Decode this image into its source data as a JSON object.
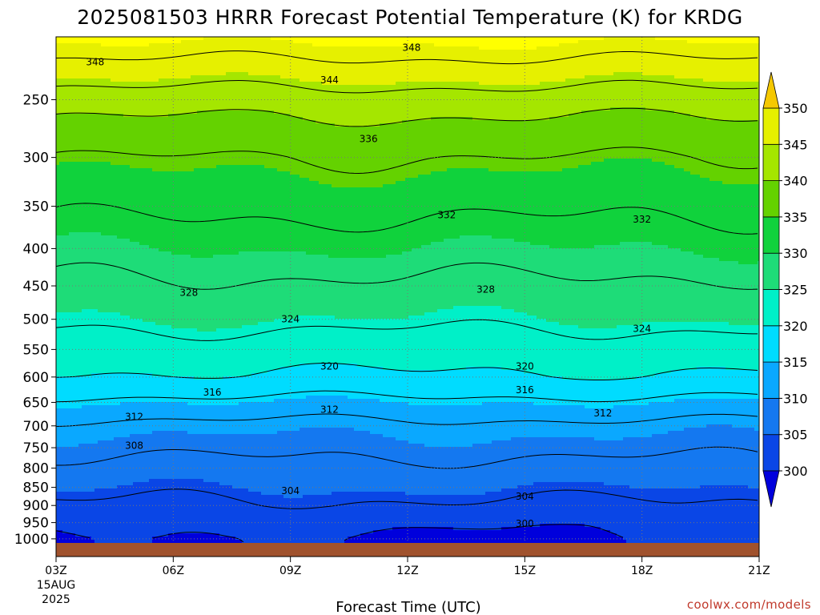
{
  "chart_data": {
    "type": "heatmap",
    "title": "2025081503 HRRR Forecast Potential Temperature (K) for KRDG",
    "xlabel": "Forecast Time (UTC)",
    "ylabel": "",
    "x_ticks": [
      "03Z",
      "06Z",
      "09Z",
      "12Z",
      "15Z",
      "18Z",
      "21Z"
    ],
    "x_hours": [
      3,
      6,
      9,
      12,
      15,
      18,
      21
    ],
    "x_date_lines": [
      "15AUG",
      "2025"
    ],
    "xlim": [
      3,
      21
    ],
    "y_ticks": [
      250,
      300,
      350,
      400,
      450,
      500,
      550,
      600,
      650,
      700,
      750,
      800,
      850,
      900,
      950,
      1000
    ],
    "y_tick_labels": [
      "250",
      "300",
      "350",
      "400",
      "450",
      "500",
      "550",
      "600",
      "650",
      "700",
      "750",
      "800",
      "850",
      "900",
      "950",
      "1000"
    ],
    "ylim": [
      1013,
      205
    ],
    "y_scale": "log-pressure",
    "ground_color": "#a0522d",
    "colorbar": {
      "levels": [
        300,
        305,
        310,
        315,
        320,
        325,
        330,
        335,
        340,
        345,
        350
      ],
      "labels": [
        "300",
        "305",
        "310",
        "315",
        "320",
        "325",
        "330",
        "335",
        "340",
        "345",
        "350"
      ],
      "colors": [
        "#0000dc",
        "#0a46e6",
        "#1478f0",
        "#0aa8ff",
        "#00dcff",
        "#00f0c8",
        "#1edc78",
        "#10d23c",
        "#64d200",
        "#a5e600",
        "#e6f000",
        "#ffff00"
      ],
      "extend": "both"
    },
    "contour_interval": 4,
    "contour_labels": [
      {
        "value": "348",
        "hour": 12.1,
        "p": 212
      },
      {
        "value": "348",
        "hour": 4.0,
        "p": 222
      },
      {
        "value": "344",
        "hour": 10.0,
        "p": 235
      },
      {
        "value": "336",
        "hour": 11.0,
        "p": 283
      },
      {
        "value": "332",
        "hour": 13.0,
        "p": 360
      },
      {
        "value": "332",
        "hour": 18.0,
        "p": 365
      },
      {
        "value": "328",
        "hour": 6.4,
        "p": 460
      },
      {
        "value": "328",
        "hour": 14.0,
        "p": 455
      },
      {
        "value": "324",
        "hour": 9.0,
        "p": 500
      },
      {
        "value": "324",
        "hour": 18.0,
        "p": 515
      },
      {
        "value": "320",
        "hour": 10.0,
        "p": 580
      },
      {
        "value": "320",
        "hour": 15.0,
        "p": 580
      },
      {
        "value": "316",
        "hour": 7.0,
        "p": 630
      },
      {
        "value": "316",
        "hour": 15.0,
        "p": 625
      },
      {
        "value": "312",
        "hour": 5.0,
        "p": 680
      },
      {
        "value": "312",
        "hour": 10.0,
        "p": 665
      },
      {
        "value": "312",
        "hour": 17.0,
        "p": 673
      },
      {
        "value": "308",
        "hour": 5.0,
        "p": 745
      },
      {
        "value": "304",
        "hour": 9.0,
        "p": 860
      },
      {
        "value": "304",
        "hour": 15.0,
        "p": 875
      },
      {
        "value": "300",
        "hour": 15.0,
        "p": 953
      }
    ],
    "theta_profile": [
      {
        "p": 200,
        "theta": 352
      },
      {
        "p": 230,
        "theta": 346
      },
      {
        "p": 260,
        "theta": 340.5
      },
      {
        "p": 300,
        "theta": 336
      },
      {
        "p": 400,
        "theta": 330
      },
      {
        "p": 500,
        "theta": 325
      },
      {
        "p": 600,
        "theta": 319.5
      },
      {
        "p": 650,
        "theta": 315
      },
      {
        "p": 700,
        "theta": 311
      },
      {
        "p": 800,
        "theta": 307
      },
      {
        "p": 900,
        "theta": 303.5
      },
      {
        "p": 960,
        "theta": 301
      },
      {
        "p": 1000,
        "theta": 300.2
      }
    ]
  },
  "footer": {
    "credit": "coolwx.com/models"
  }
}
